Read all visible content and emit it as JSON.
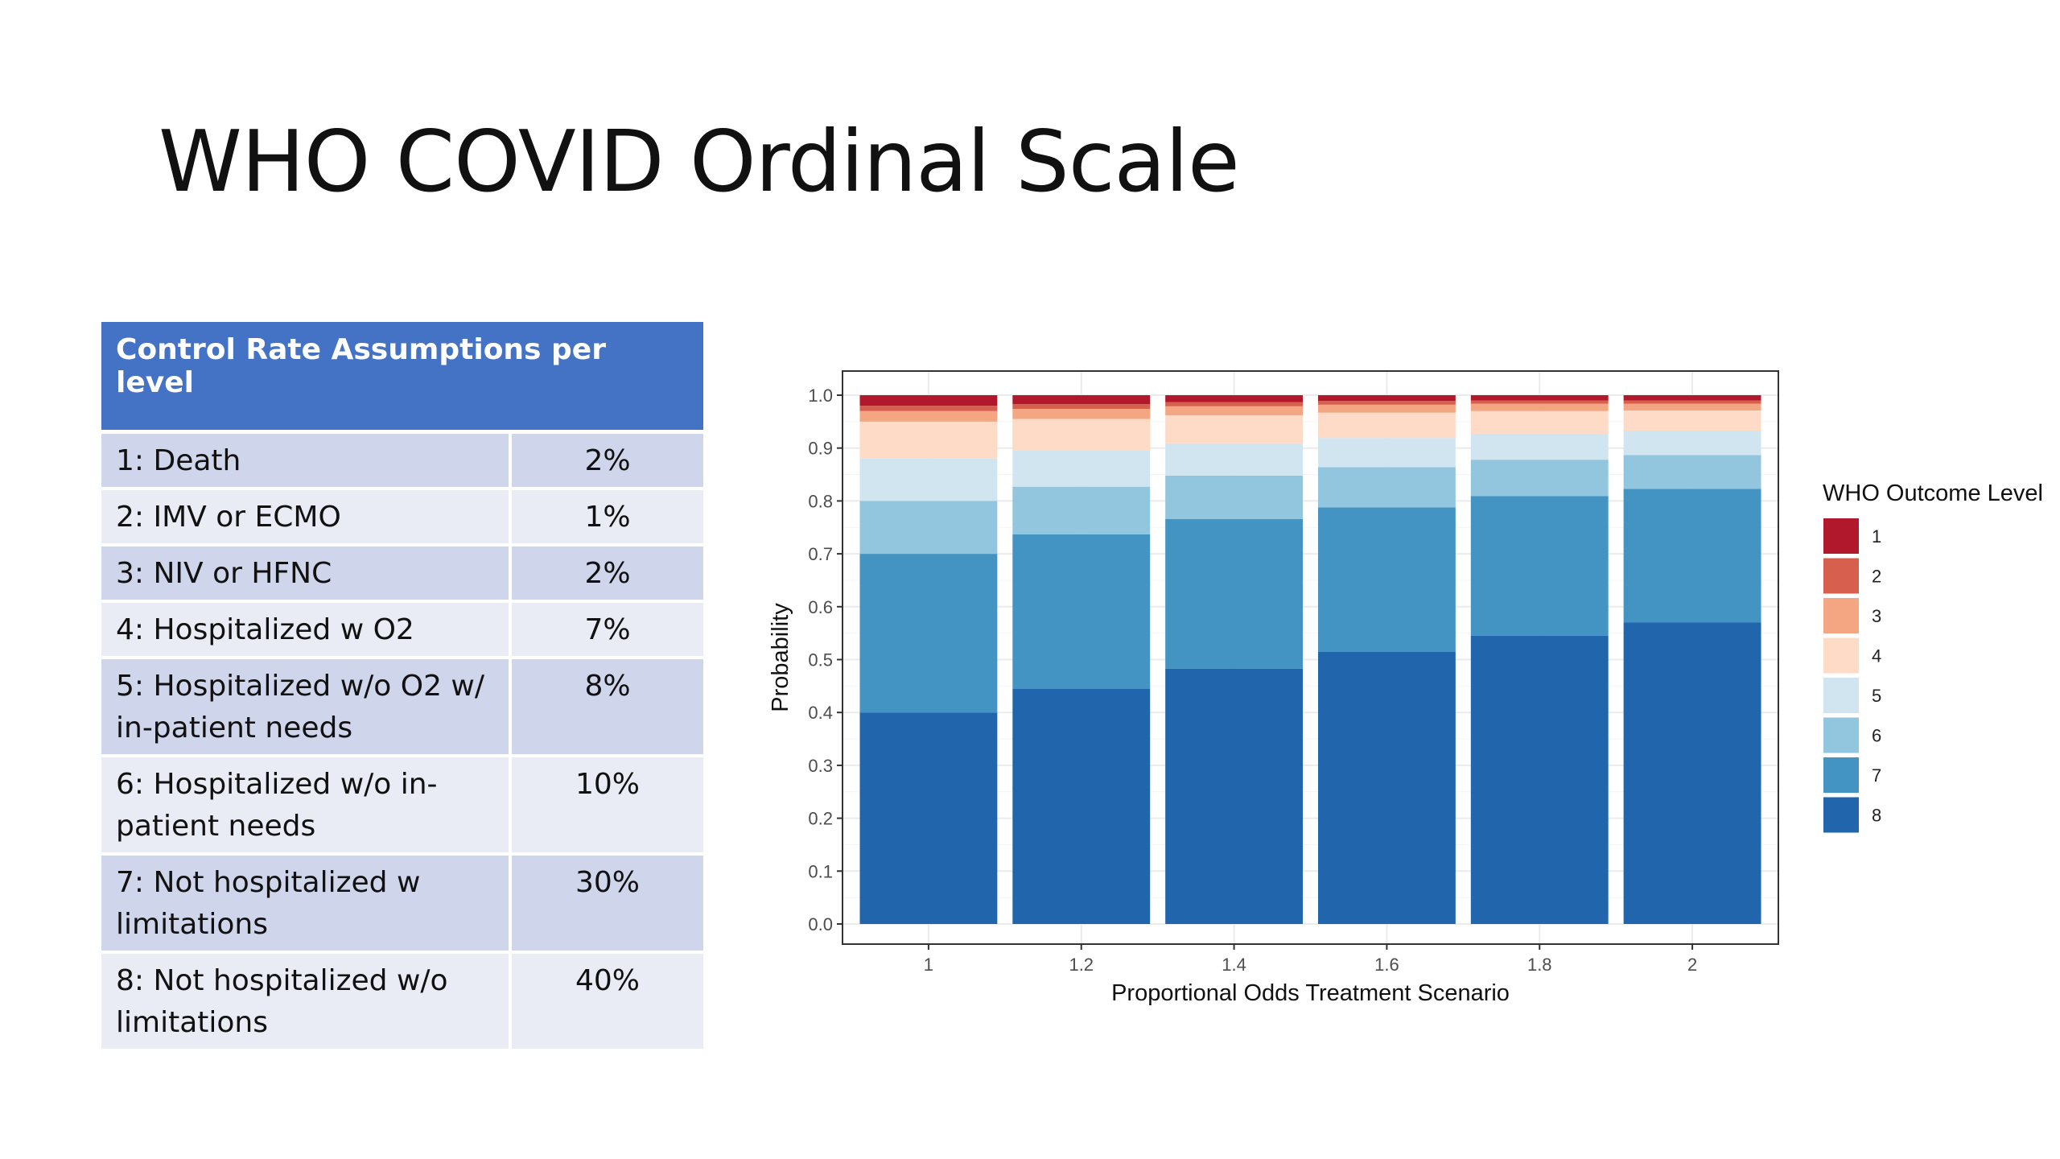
{
  "slide": {
    "title": "WHO COVID Ordinal Scale"
  },
  "table": {
    "header": "Control Rate Assumptions per level",
    "rows": [
      {
        "level": "1: Death",
        "rate": "2%"
      },
      {
        "level": "2: IMV or ECMO",
        "rate": "1%"
      },
      {
        "level": "3: NIV or HFNC",
        "rate": "2%"
      },
      {
        "level": "4: Hospitalized w O2",
        "rate": "7%"
      },
      {
        "level": "5: Hospitalized w/o O2 w/ in-patient needs",
        "rate": "8%"
      },
      {
        "level": "6: Hospitalized w/o in-patient needs",
        "rate": "10%"
      },
      {
        "level": "7: Not hospitalized w limitations",
        "rate": "30%"
      },
      {
        "level": "8: Not hospitalized w/o limitations",
        "rate": "40%"
      }
    ]
  },
  "chart_data": {
    "type": "bar",
    "stacked": true,
    "title": "",
    "xlabel": "Proportional Odds Treatment Scenario",
    "ylabel": "Probability",
    "ylim": [
      0,
      1
    ],
    "yticks": [
      "0.0",
      "0.1",
      "0.2",
      "0.3",
      "0.4",
      "0.5",
      "0.6",
      "0.7",
      "0.8",
      "0.9",
      "1.0"
    ],
    "categories": [
      "1",
      "1.2",
      "1.4",
      "1.6",
      "1.8",
      "2"
    ],
    "legend": {
      "title": "WHO Outcome Level",
      "position": "right"
    },
    "grid": true,
    "series": [
      {
        "name": "8",
        "color": "#2166ac",
        "values": [
          0.4,
          0.445,
          0.483,
          0.515,
          0.545,
          0.57
        ]
      },
      {
        "name": "7",
        "color": "#4393c3",
        "values": [
          0.3,
          0.292,
          0.283,
          0.273,
          0.264,
          0.253
        ]
      },
      {
        "name": "6",
        "color": "#92c5de",
        "values": [
          0.1,
          0.09,
          0.082,
          0.076,
          0.069,
          0.064
        ]
      },
      {
        "name": "5",
        "color": "#d1e5f0",
        "values": [
          0.08,
          0.068,
          0.061,
          0.055,
          0.049,
          0.046
        ]
      },
      {
        "name": "4",
        "color": "#fddbc7",
        "values": [
          0.07,
          0.06,
          0.053,
          0.048,
          0.043,
          0.038
        ]
      },
      {
        "name": "3",
        "color": "#f4a582",
        "values": [
          0.02,
          0.019,
          0.017,
          0.015,
          0.014,
          0.013
        ]
      },
      {
        "name": "2",
        "color": "#d6604d",
        "values": [
          0.01,
          0.009,
          0.008,
          0.007,
          0.006,
          0.006
        ]
      },
      {
        "name": "1",
        "color": "#b2182b",
        "values": [
          0.02,
          0.017,
          0.013,
          0.011,
          0.01,
          0.01
        ]
      }
    ]
  }
}
